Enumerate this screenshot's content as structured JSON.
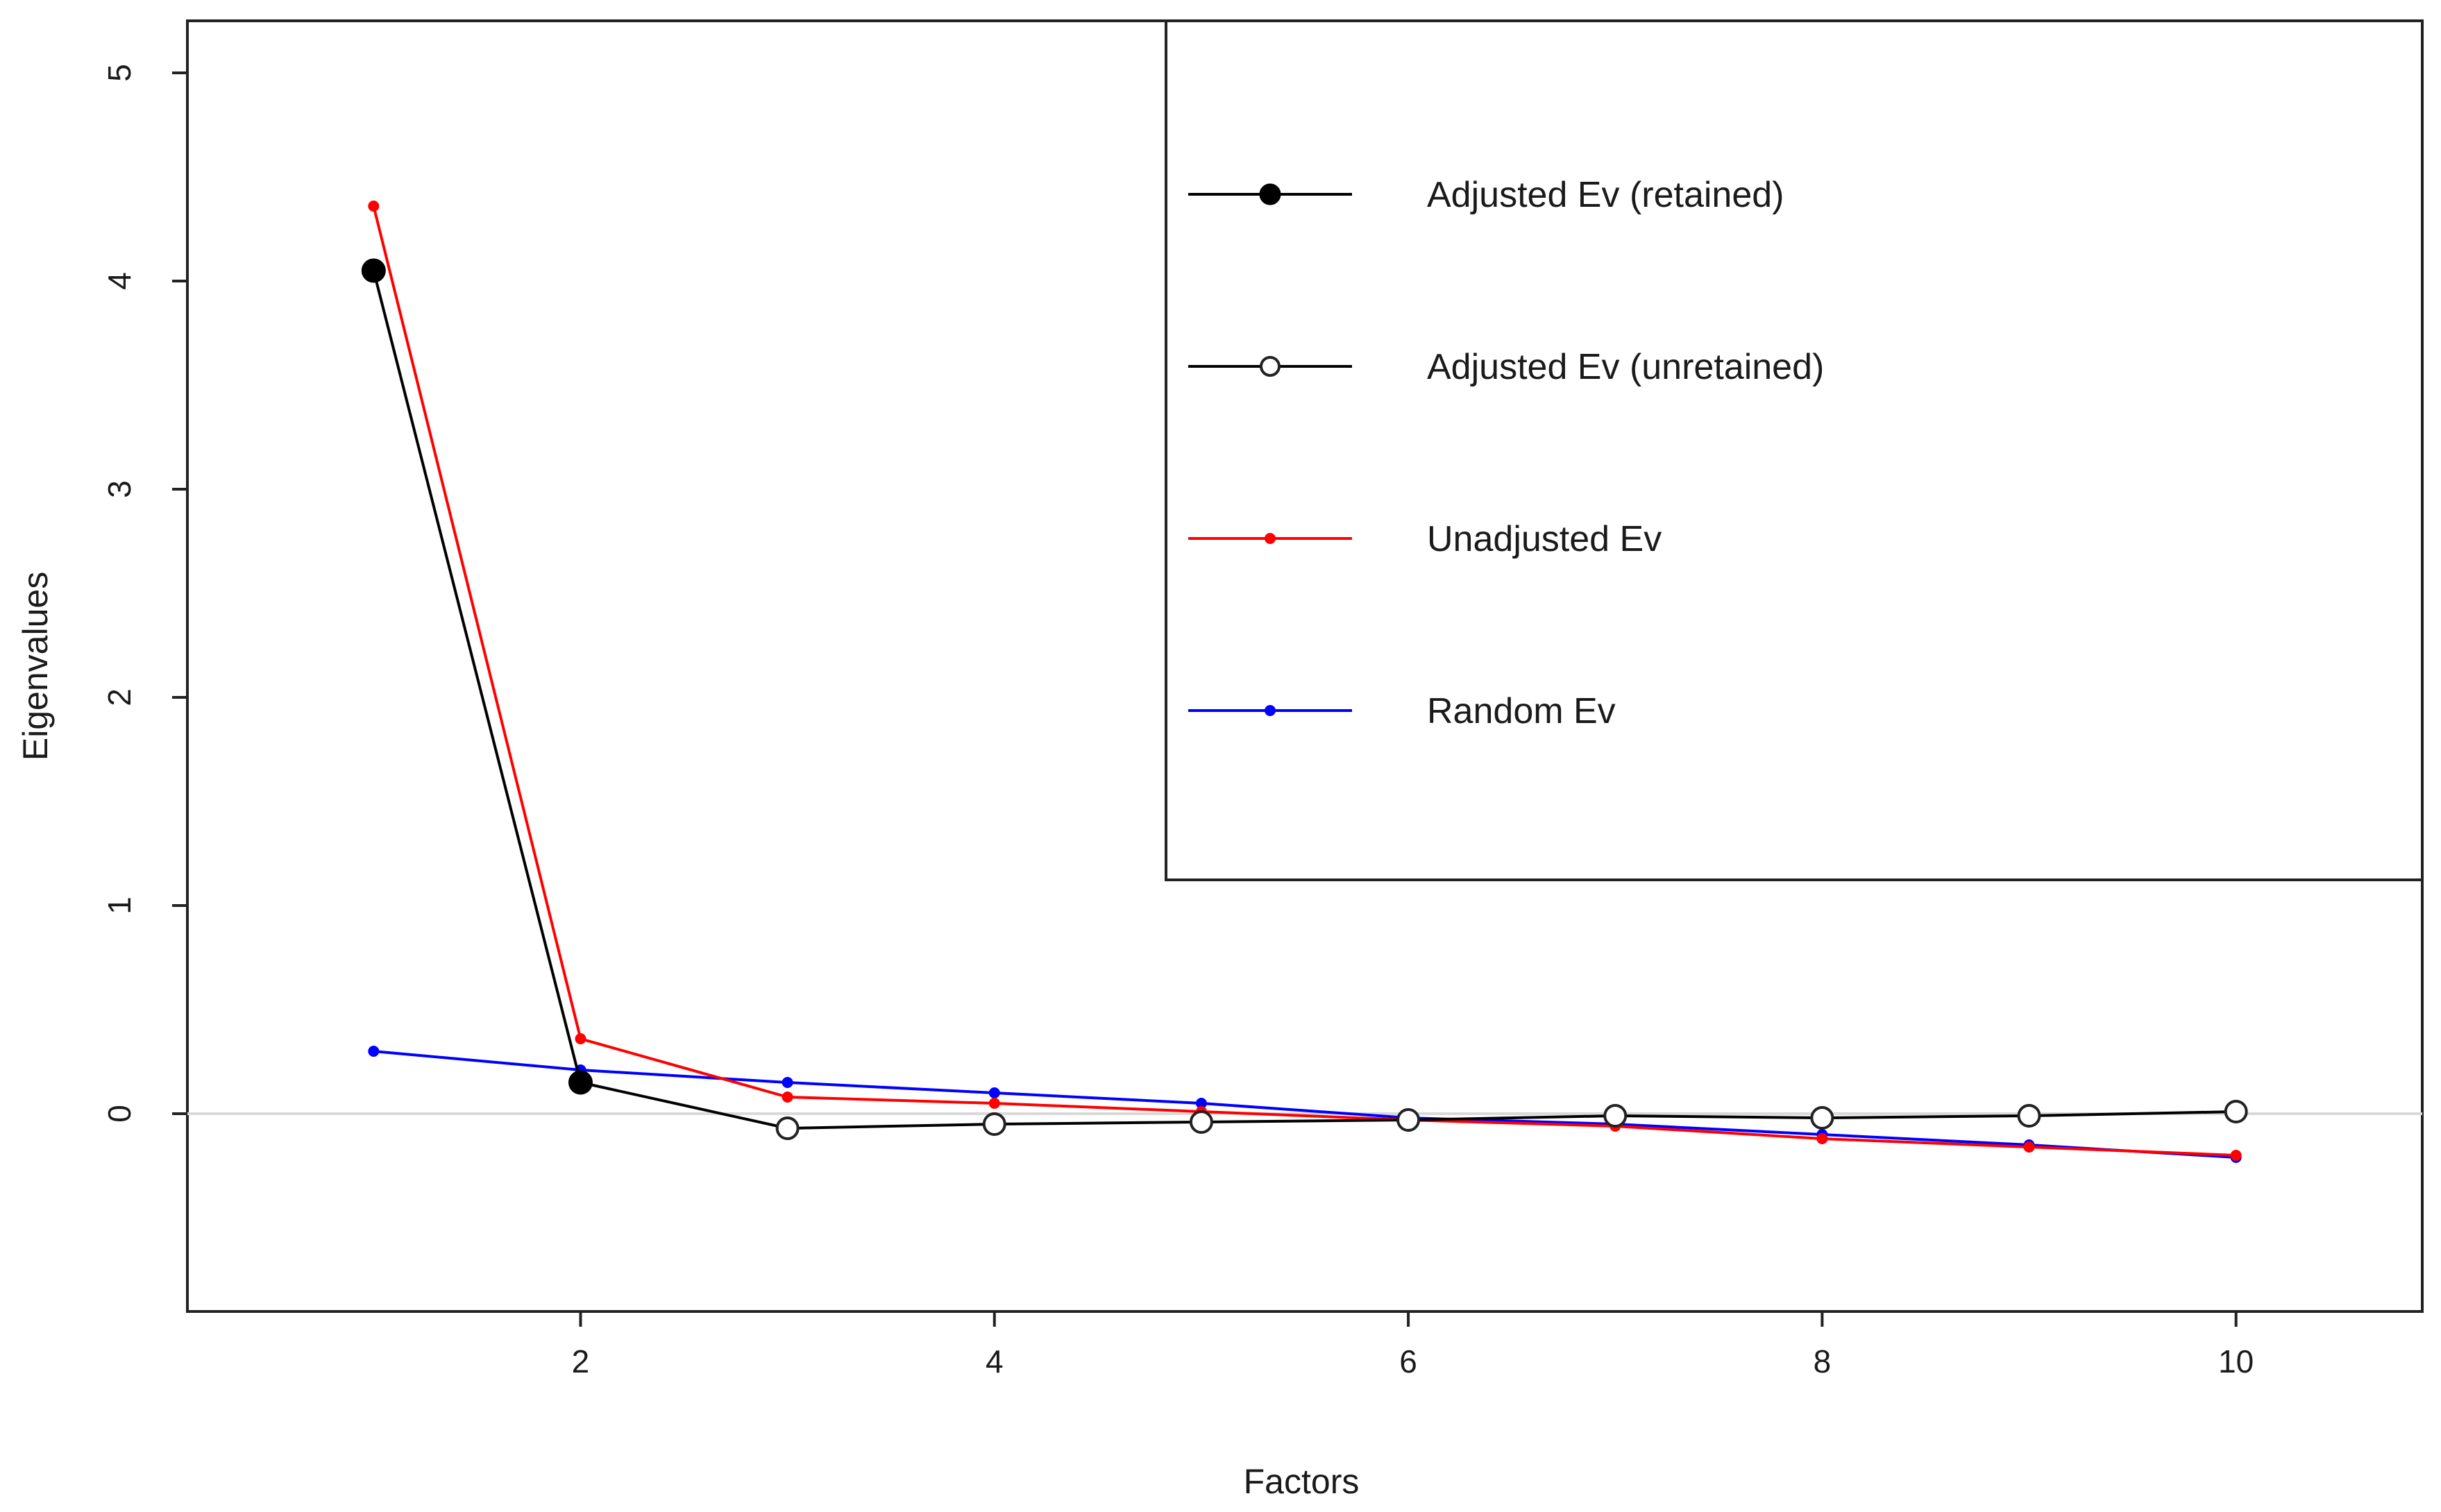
{
  "chart_data": {
    "type": "line",
    "title": "",
    "xlabel": "Factors",
    "ylabel": "Eigenvalues",
    "xlim": [
      0.1,
      10.9
    ],
    "ylim": [
      -0.95,
      5.25
    ],
    "x_ticks": [
      2,
      4,
      6,
      8,
      10
    ],
    "y_ticks": [
      0,
      1,
      2,
      3,
      4,
      5
    ],
    "reference_line_y": 0,
    "grid": false,
    "legend_position": "top-right",
    "series": [
      {
        "name": "Adjusted Ev (retained)",
        "color": "#000000",
        "marker": "filled-circle",
        "x": [
          1,
          2
        ],
        "values": [
          4.05,
          0.15
        ]
      },
      {
        "name": "Adjusted Ev (unretained)",
        "color": "#000000",
        "marker": "open-circle",
        "x": [
          2,
          3,
          4,
          5,
          6,
          7,
          8,
          9,
          10
        ],
        "values": [
          0.15,
          -0.07,
          -0.05,
          -0.04,
          -0.03,
          -0.01,
          -0.02,
          -0.01,
          0.01
        ]
      },
      {
        "name": "Unadjusted Ev",
        "color": "#ff0000",
        "marker": "small-dot",
        "x": [
          1,
          2,
          3,
          4,
          5,
          6,
          7,
          8,
          9,
          10
        ],
        "values": [
          4.36,
          0.36,
          0.08,
          0.05,
          0.01,
          -0.03,
          -0.06,
          -0.12,
          -0.16,
          -0.2
        ]
      },
      {
        "name": "Random Ev",
        "color": "#0000ff",
        "marker": "small-dot",
        "x": [
          1,
          2,
          3,
          4,
          5,
          6,
          7,
          8,
          9,
          10
        ],
        "values": [
          0.3,
          0.21,
          0.15,
          0.1,
          0.05,
          -0.02,
          -0.05,
          -0.1,
          -0.15,
          -0.21
        ]
      }
    ]
  }
}
